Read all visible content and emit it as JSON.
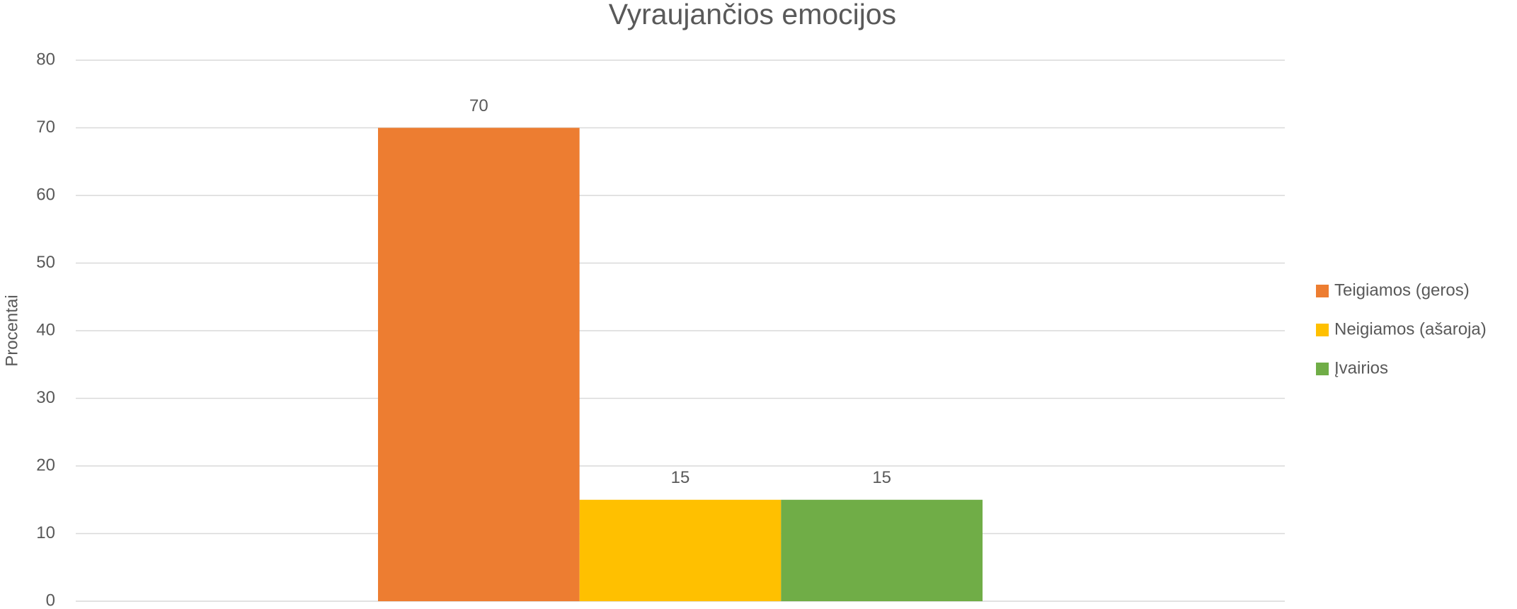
{
  "chart_data": {
    "type": "bar",
    "title": "Vyraujančios emocijos",
    "y_label": "Procentai",
    "categories": [
      null
    ],
    "series": [
      {
        "name": "Teigiamos (geros)",
        "color": "#ed7d31",
        "values": [
          70
        ]
      },
      {
        "name": "Neigiamos (ašaroja)",
        "color": "#ffc000",
        "values": [
          15
        ]
      },
      {
        "name": "Įvairios",
        "color": "#70ad47",
        "values": [
          15
        ]
      }
    ],
    "ylim": [
      0,
      80
    ],
    "yticks": [
      0,
      10,
      20,
      30,
      40,
      50,
      60,
      70,
      80
    ],
    "grid": true,
    "legend": "right"
  }
}
